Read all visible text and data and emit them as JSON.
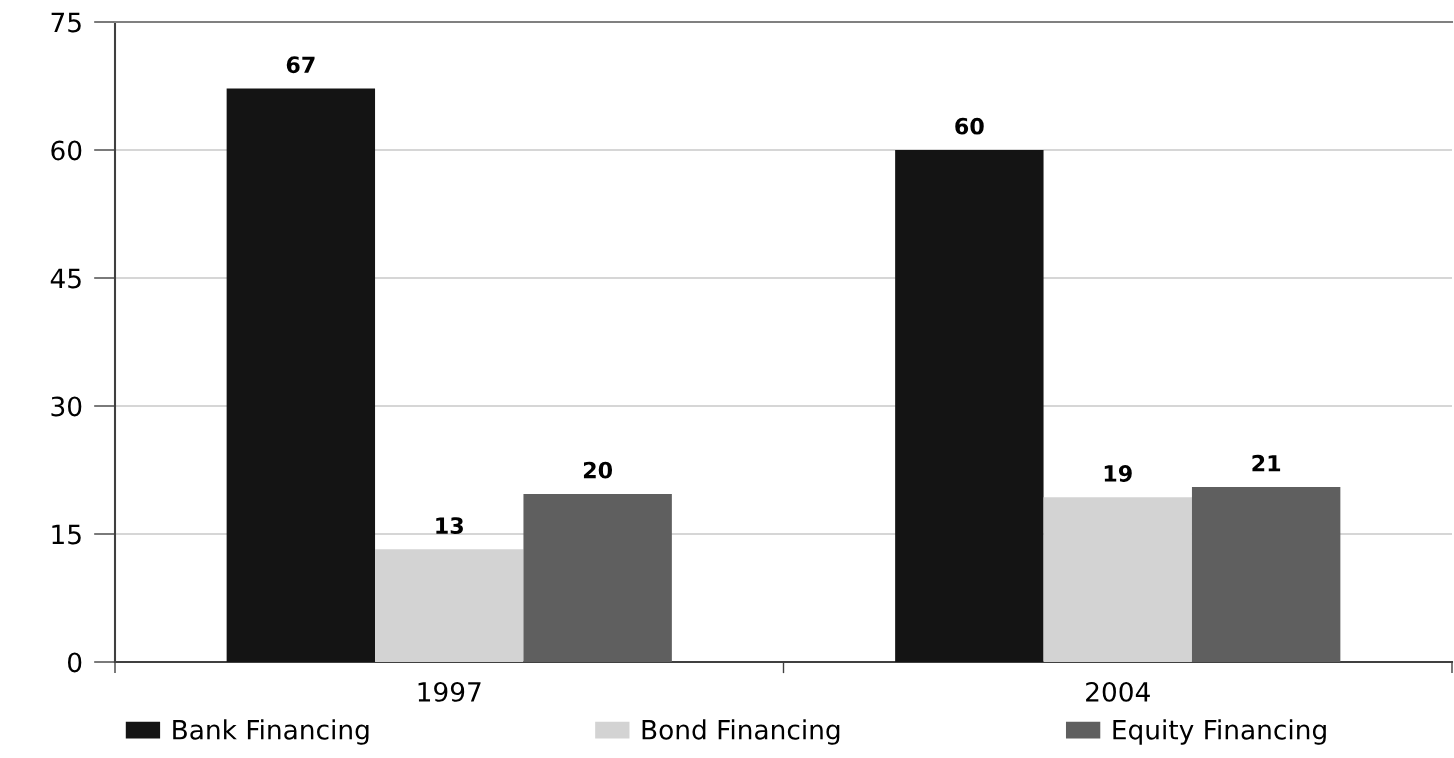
{
  "chart_data": {
    "type": "bar",
    "categories": [
      "1997",
      "2004"
    ],
    "series": [
      {
        "name": "Bank Financing",
        "color": "#141414",
        "values": [
          67.2,
          60
        ],
        "value_labels": [
          "67",
          "60"
        ]
      },
      {
        "name": "Bond Financing",
        "color": "#d3d3d3",
        "values": [
          13.2,
          19.3
        ],
        "value_labels": [
          "13",
          "19"
        ]
      },
      {
        "name": "Equity Financing",
        "color": "#5f5f5f",
        "values": [
          19.7,
          20.5
        ],
        "value_labels": [
          "20",
          "21"
        ]
      }
    ],
    "ylim": [
      0,
      75
    ],
    "yticks": [
      0,
      15,
      30,
      45,
      60,
      75
    ],
    "grid": "y",
    "legend": "bottom"
  }
}
